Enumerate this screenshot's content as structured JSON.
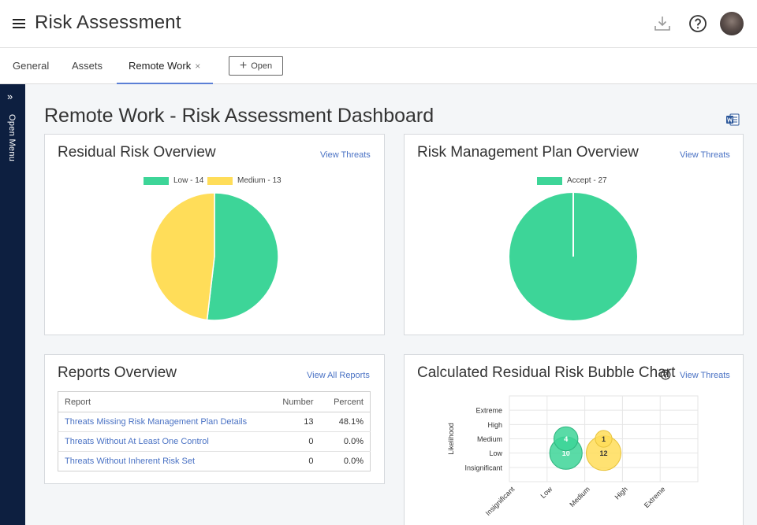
{
  "header": {
    "app_title": "Risk Assessment",
    "icons": {
      "menu": "hamburger-icon",
      "download": "download-icon",
      "help": "help-icon",
      "avatar": "user-avatar"
    }
  },
  "tabs": [
    {
      "label": "General"
    },
    {
      "label": "Assets"
    },
    {
      "label": "Remote Work",
      "active": true,
      "close": "×"
    }
  ],
  "open_button": {
    "label": "Open"
  },
  "siderail": {
    "label": "Open Menu",
    "chevron": "»"
  },
  "page": {
    "title": "Remote Work - Risk Assessment Dashboard"
  },
  "colors": {
    "green": "#3dd598",
    "yellow": "#ffdd59",
    "link": "#4a72c4",
    "rail": "#0d1f40"
  },
  "cards": {
    "residual": {
      "title": "Residual Risk Overview",
      "link": "View Threats",
      "legend": [
        {
          "label": "Low - 14",
          "color": "#3dd598"
        },
        {
          "label": "Medium - 13",
          "color": "#ffdd59"
        }
      ]
    },
    "plan": {
      "title": "Risk Management Plan Overview",
      "link": "View Threats",
      "legend": [
        {
          "label": "Accept - 27",
          "color": "#3dd598"
        }
      ]
    },
    "reports": {
      "title": "Reports Overview",
      "link": "View All Reports",
      "columns": [
        "Report",
        "Number",
        "Percent"
      ],
      "rows": [
        {
          "name": "Threats Missing Risk Management Plan Details",
          "number": "13",
          "percent": "48.1%"
        },
        {
          "name": "Threats Without At Least One Control",
          "number": "0",
          "percent": "0.0%"
        },
        {
          "name": "Threats Without Inherent Risk Set",
          "number": "0",
          "percent": "0.0%"
        }
      ]
    },
    "bubble": {
      "title": "Calculated Residual Risk Bubble Chart",
      "link": "View Threats"
    }
  },
  "chart_data": [
    {
      "type": "pie",
      "title": "Residual Risk Overview",
      "categories": [
        "Low",
        "Medium"
      ],
      "values": [
        14,
        13
      ],
      "colors": [
        "#3dd598",
        "#ffdd59"
      ],
      "legend_position": "top"
    },
    {
      "type": "pie",
      "title": "Risk Management Plan Overview",
      "categories": [
        "Accept"
      ],
      "values": [
        27
      ],
      "colors": [
        "#3dd598"
      ],
      "legend_position": "top"
    },
    {
      "type": "scatter",
      "subtype": "bubble",
      "title": "Calculated Residual Risk Bubble Chart",
      "ylabel": "Likelihood",
      "xlabel": "",
      "x_categories": [
        "Insignificant",
        "Low",
        "Medium",
        "High",
        "Extreme"
      ],
      "y_categories": [
        "Insignificant",
        "Low",
        "Medium",
        "High",
        "Extreme"
      ],
      "grid": true,
      "points": [
        {
          "x": "Low",
          "y": "Low",
          "value": 10,
          "color": "#3dd598"
        },
        {
          "x": "Low",
          "y": "Medium",
          "value": 4,
          "color": "#3dd598"
        },
        {
          "x": "Medium",
          "y": "Low",
          "value": 12,
          "color": "#ffdd59"
        },
        {
          "x": "Medium",
          "y": "Medium",
          "value": 1,
          "color": "#ffdd59"
        }
      ]
    }
  ]
}
